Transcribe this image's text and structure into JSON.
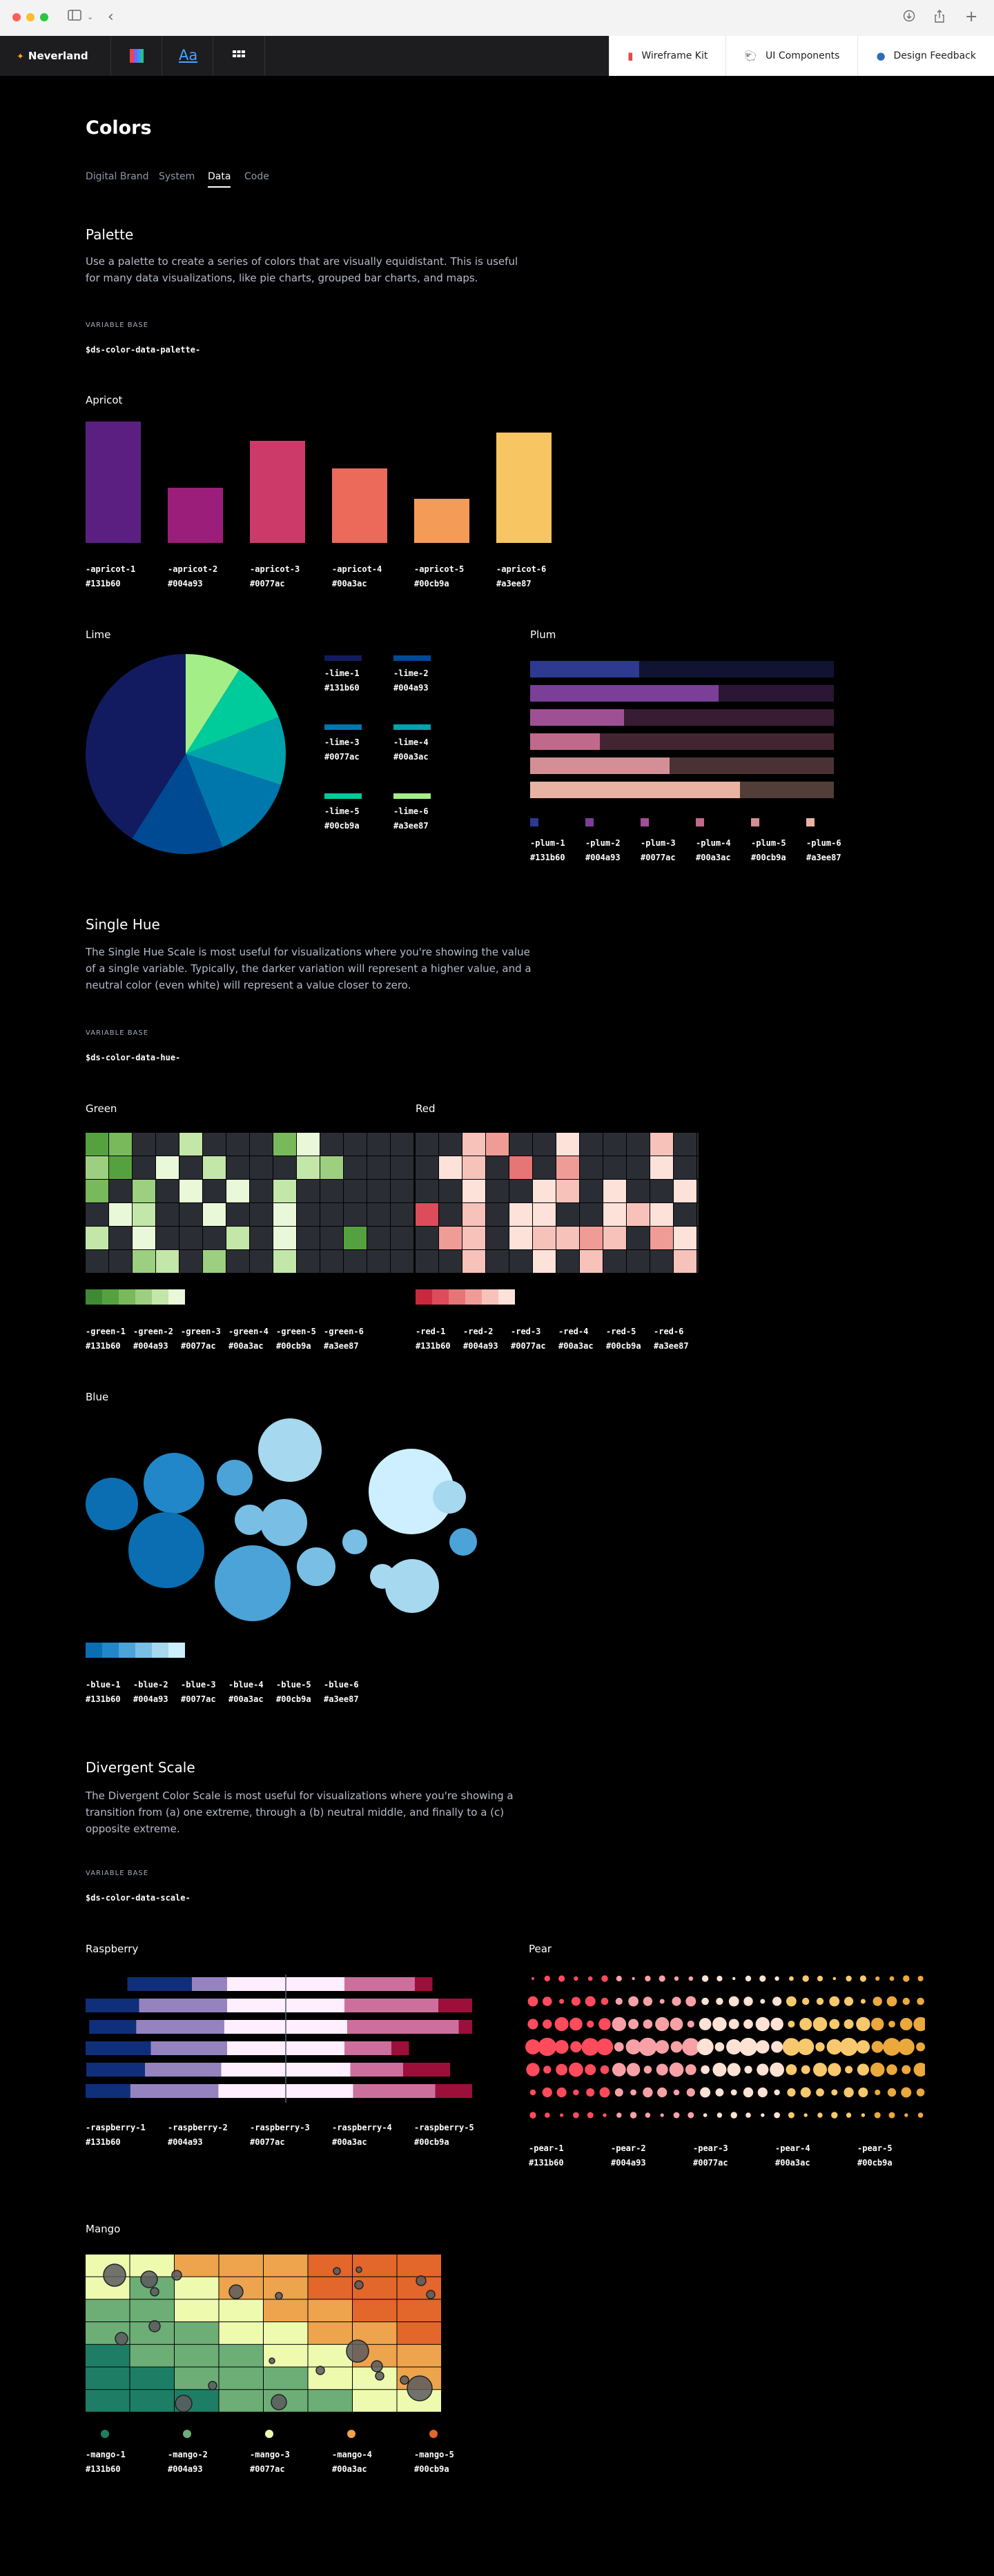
{
  "colors": {
    "c131b60": "#131b60",
    "c004a93": "#004a93",
    "c0077ac": "#0077ac",
    "c00a3ac": "#00a3ac",
    "c00cb9a": "#00cb9a",
    "ca3ee87": "#a3ee87"
  },
  "browser": {
    "sidebar_icon": "sidebar-icon",
    "chevron_icon": "chevron-left-icon",
    "download_icon": "download-icon",
    "share_icon": "share-icon",
    "plus_icon": "plus-icon"
  },
  "app": {
    "brand": "Neverland",
    "nav": [
      {
        "label": "Wireframe Kit",
        "icon": "figma-icon"
      },
      {
        "label": "UI Components",
        "icon": "sheep-icon"
      },
      {
        "label": "Design Feedback",
        "icon": "person-icon"
      }
    ]
  },
  "page": {
    "title": "Colors",
    "tabs": [
      "Digital Brand",
      "System",
      "Data",
      "Code"
    ],
    "active_tab": "Data"
  },
  "palette": {
    "title": "Palette",
    "desc": "Use a palette to create a series of colors that are visually equidistant. This is useful for many data visualizations, like pie charts, grouped bar charts, and maps.",
    "overline": "VARIABLE BASE",
    "variable": "$ds-color-data-palette-"
  },
  "hexes": [
    "#131b60",
    "#004a93",
    "#0077ac",
    "#00a3ac",
    "#00cb9a",
    "#a3ee87"
  ],
  "apricot": {
    "title": "Apricot",
    "tokens": [
      "-apricot-1",
      "-apricot-2",
      "-apricot-3",
      "-apricot-4",
      "-apricot-5",
      "-apricot-6"
    ],
    "colors": [
      "#5b1f82",
      "#9b1f7a",
      "#cc3a6a",
      "#eb6a5a",
      "#f59b58",
      "#f7c663"
    ],
    "values": [
      88,
      40,
      74,
      54,
      32,
      80
    ]
  },
  "lime": {
    "title": "Lime",
    "tokens": [
      "-lime-1",
      "-lime-2",
      "-lime-3",
      "-lime-4",
      "-lime-5",
      "-lime-6"
    ],
    "colors": [
      "#131b60",
      "#004a93",
      "#0077ac",
      "#00a3ac",
      "#00cb9a",
      "#a3ee87"
    ],
    "values": [
      41,
      15,
      14,
      11,
      10,
      9
    ]
  },
  "plum": {
    "title": "Plum",
    "tokens": [
      "-plum-1",
      "-plum-2",
      "-plum-3",
      "-plum-4",
      "-plum-5",
      "-plum-6"
    ],
    "colors": [
      "#2d3a8f",
      "#7b3f98",
      "#9f5095",
      "#c06a8b",
      "#d38f95",
      "#e9b3a4"
    ],
    "values": [
      36,
      62,
      31,
      23,
      46,
      69
    ]
  },
  "single_hue": {
    "title": "Single Hue",
    "desc": "The Single Hue Scale is most useful for visualizations where you're showing the value of a single variable. Typically, the darker variation will represent a higher value, and a neutral color (even white) will represent a value closer to zero.",
    "overline": "VARIABLE BASE",
    "variable": "$ds-color-data-hue-"
  },
  "green": {
    "title": "Green",
    "tokens": [
      "-green-1",
      "-green-2",
      "-green-3",
      "-green-4",
      "-green-5",
      "-green-6"
    ],
    "colors": [
      "#3e8a34",
      "#56a13f",
      "#78b95c",
      "#9ccf7f",
      "#c3e6a9",
      "#e9f8d9"
    ],
    "empty": "#2a2d33",
    "grid": [
      [
        5,
        4,
        0,
        0,
        2,
        0,
        0,
        0,
        4,
        1,
        0,
        0,
        0,
        0
      ],
      [
        3,
        5,
        0,
        1,
        0,
        2,
        0,
        0,
        0,
        2,
        3,
        0,
        0,
        0
      ],
      [
        4,
        0,
        3,
        0,
        1,
        0,
        1,
        0,
        2,
        0,
        0,
        0,
        0,
        0
      ],
      [
        0,
        1,
        2,
        0,
        0,
        1,
        0,
        0,
        1,
        0,
        0,
        0,
        0,
        0
      ],
      [
        2,
        0,
        1,
        0,
        0,
        0,
        2,
        0,
        1,
        0,
        0,
        5,
        0,
        0
      ],
      [
        0,
        0,
        3,
        2,
        0,
        3,
        0,
        0,
        2,
        0,
        0,
        0,
        0,
        0
      ]
    ]
  },
  "red": {
    "title": "Red",
    "tokens": [
      "-red-1",
      "-red-2",
      "-red-3",
      "-red-4",
      "-red-5",
      "-red-6"
    ],
    "colors": [
      "#c9283e",
      "#dc4c5a",
      "#e67575",
      "#f09c96",
      "#f7c2ba",
      "#fde2da"
    ],
    "empty": "#2a2d33",
    "grid": [
      [
        0,
        0,
        2,
        3,
        0,
        0,
        1,
        0,
        0,
        0,
        2,
        0,
        0
      ],
      [
        0,
        1,
        2,
        0,
        4,
        0,
        3,
        0,
        0,
        0,
        1,
        0,
        0
      ],
      [
        0,
        0,
        1,
        0,
        0,
        1,
        2,
        0,
        1,
        0,
        0,
        1,
        0
      ],
      [
        5,
        0,
        2,
        0,
        1,
        1,
        0,
        0,
        1,
        2,
        1,
        0,
        0
      ],
      [
        0,
        3,
        2,
        0,
        1,
        2,
        2,
        3,
        2,
        0,
        3,
        1,
        0
      ],
      [
        0,
        0,
        2,
        0,
        0,
        1,
        0,
        2,
        0,
        0,
        0,
        2,
        0
      ]
    ]
  },
  "blue": {
    "title": "Blue",
    "tokens": [
      "-blue-1",
      "-blue-2",
      "-blue-3",
      "-blue-4",
      "-blue-5",
      "-blue-6"
    ],
    "colors": [
      "#0b6eb2",
      "#2187c8",
      "#4ba3d8",
      "#79bfe5",
      "#a6d8ef",
      "#cdefff"
    ]
  },
  "divergent": {
    "title": "Divergent Scale",
    "desc": "The Divergent Color Scale is most useful for visualizations where you're showing a transition from (a) one extreme, through a (b) neutral middle, and finally to a (c) opposite extreme.",
    "overline": "VARIABLE BASE",
    "variable": "$ds-color-data-scale-"
  },
  "raspberry": {
    "title": "Raspberry",
    "tokens": [
      "-raspberry-1",
      "-raspberry-2",
      "-raspberry-3",
      "-raspberry-4",
      "-raspberry-5"
    ],
    "colors": [
      "#0f2f7a",
      "#9583c0",
      "#ffeefe",
      "#cd6f9c",
      "#9c0f3a"
    ],
    "rows": [
      [
        11,
        6,
        20,
        12,
        3
      ],
      [
        10,
        15,
        20,
        16,
        6
      ],
      [
        8,
        15,
        21,
        19,
        3
      ],
      [
        14,
        13,
        20,
        8,
        3
      ],
      [
        10,
        13,
        22,
        9,
        8
      ],
      [
        10,
        15,
        23,
        14,
        10
      ]
    ]
  },
  "pear": {
    "title": "Pear",
    "tokens": [
      "-pear-1",
      "-pear-2",
      "-pear-3",
      "-pear-4",
      "-pear-5"
    ],
    "colors": [
      "#ff4b5c",
      "#f7a1a6",
      "#ffe2d4",
      "#f7c86d",
      "#eba83d"
    ]
  },
  "mango": {
    "title": "Mango",
    "tokens": [
      "-mango-1",
      "-mango-2",
      "-mango-3",
      "-mango-4",
      "-mango-5"
    ],
    "colors": [
      "#1e7e65",
      "#6cae76",
      "#eefaae",
      "#eda44d",
      "#e3662b"
    ]
  }
}
